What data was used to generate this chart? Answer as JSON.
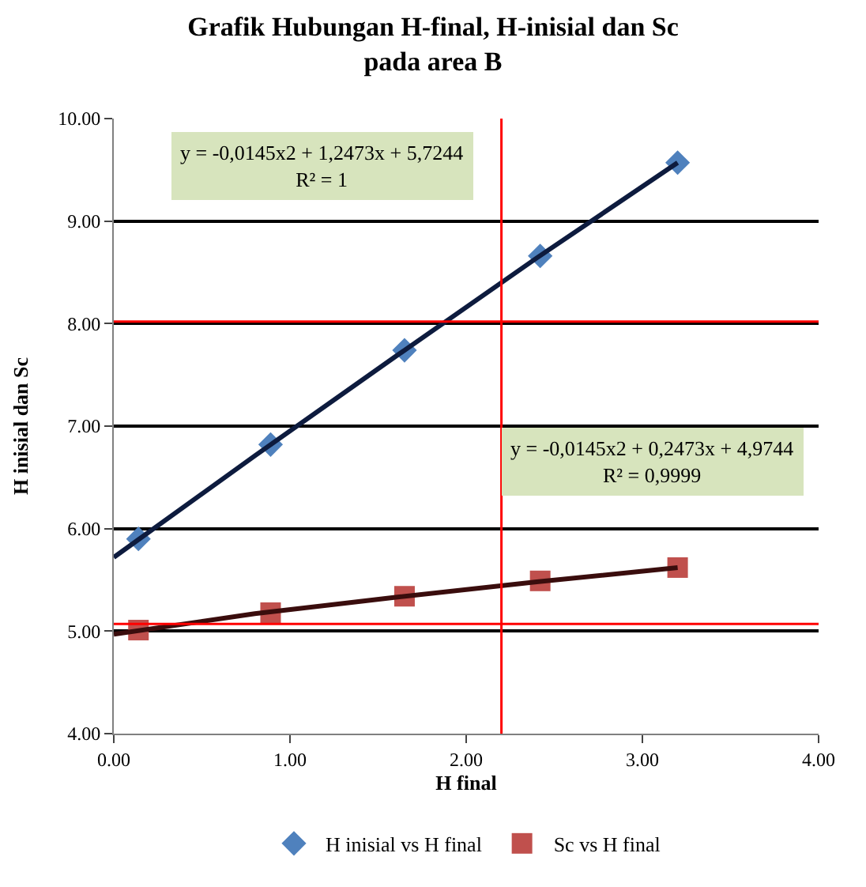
{
  "chart_data": {
    "type": "scatter",
    "title": "Grafik Hubungan H-final, H-inisial dan Sc\npada area B",
    "xlabel": "H final",
    "ylabel": "H inisial dan Sc",
    "xlim": [
      0,
      4
    ],
    "xticks": [
      {
        "value": 0,
        "label": "0.00"
      },
      {
        "value": 1,
        "label": "1.00"
      },
      {
        "value": 2,
        "label": "2.00"
      },
      {
        "value": 3,
        "label": "3.00"
      },
      {
        "value": 4,
        "label": "4.00"
      }
    ],
    "ylim": [
      4,
      10
    ],
    "yticks": [
      {
        "value": 4,
        "label": "4.00"
      },
      {
        "value": 5,
        "label": "5.00"
      },
      {
        "value": 6,
        "label": "6.00"
      },
      {
        "value": 7,
        "label": "7.00"
      },
      {
        "value": 8,
        "label": "8.00"
      },
      {
        "value": 9,
        "label": "9.00"
      },
      {
        "value": 10,
        "label": "10.00"
      }
    ],
    "grid": "y",
    "legend": "bottom",
    "series": [
      {
        "name": "H inisial vs H final",
        "marker": "diamond",
        "color": "#4f81bd",
        "x": [
          0.14,
          0.89,
          1.65,
          2.42,
          3.2
        ],
        "values": [
          5.9,
          6.82,
          7.74,
          8.66,
          9.57
        ]
      },
      {
        "name": "Sc vs H final",
        "marker": "square",
        "color": "#c0504d",
        "x": [
          0.14,
          0.89,
          1.65,
          2.42,
          3.2
        ],
        "values": [
          5.01,
          5.18,
          5.34,
          5.49,
          5.62
        ]
      },
      {
        "type": "line",
        "color": "#0d1b3e",
        "x": [
          0,
          0.8,
          1.6,
          2.4,
          3.2
        ],
        "values": [
          5.72,
          6.71,
          7.68,
          8.64,
          9.57
        ]
      },
      {
        "type": "line",
        "color": "#3a0d0d",
        "x": [
          0,
          0.8,
          1.6,
          2.4,
          3.2
        ],
        "values": [
          4.97,
          5.17,
          5.33,
          5.48,
          5.62
        ]
      }
    ],
    "annotations": [
      "y = -0,0145x2 + 1,2473x + 5,7244\nR² = 1",
      "y = -0,0145x2 + 0,2473x + 4,9744\nR² = 0,9999"
    ],
    "ref_lines": [
      {
        "axis": "x",
        "value": 2.2,
        "color": "#ff0000"
      },
      {
        "axis": "y",
        "value": 8.02,
        "color": "#ff0000"
      },
      {
        "axis": "y",
        "value": 5.07,
        "color": "#ff0000"
      }
    ]
  }
}
